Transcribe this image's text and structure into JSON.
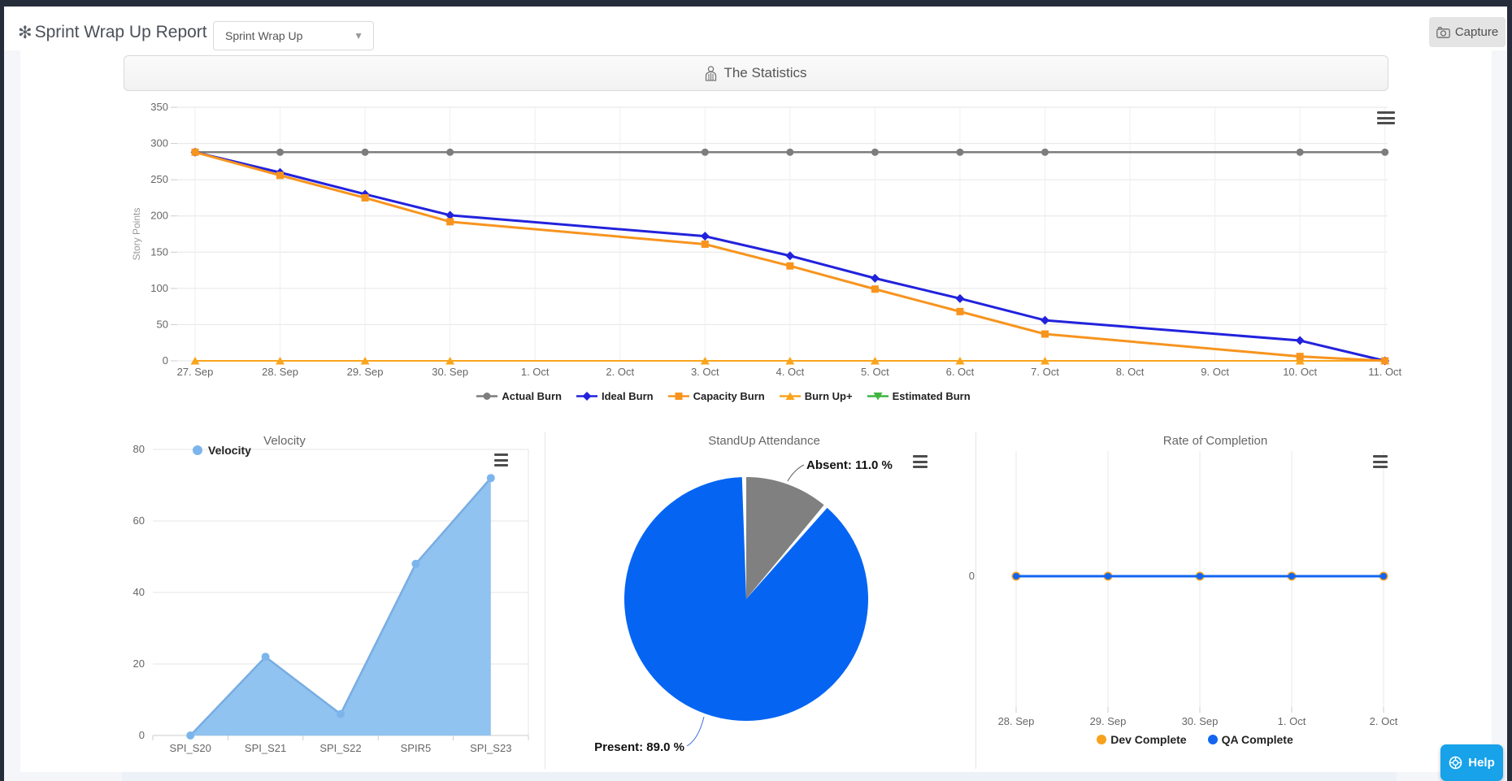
{
  "header": {
    "app_title": "Sprint Wrap Up Report",
    "app_icon": "flower-asterisk",
    "report_select": {
      "value": "Sprint Wrap Up"
    },
    "capture_label": "Capture"
  },
  "statistics_header": {
    "title": "The Statistics",
    "icon": "person-icon"
  },
  "help_button": {
    "label": "Help",
    "icon": "life-ring-icon"
  },
  "colors": {
    "frame": "#262d3a",
    "actual_burn": "#7d7d7d",
    "ideal_burn": "#2222dd",
    "capacity_burn": "#f7941e",
    "burn_up": "#f9a41c",
    "estimated_burn": "#3fb53f",
    "velocity_marker": "#7cb5ec",
    "velocity_line": "#78ade2",
    "velocity_fill": "#90c3ef",
    "pie_present": "#0565f2",
    "pie_absent": "#808080",
    "dev_complete": "#f7a11d",
    "qa_complete": "#1365f0",
    "help_blue": "#17a2e9"
  },
  "chart_data": [
    {
      "id": "burndown",
      "type": "line",
      "title": "",
      "ylabel": "Story Points",
      "ylim": [
        0,
        350
      ],
      "yticks": [
        0,
        50,
        100,
        150,
        200,
        250,
        300,
        350
      ],
      "categories": [
        "27. Sep",
        "28. Sep",
        "29. Sep",
        "30. Sep",
        "1. Oct",
        "2. Oct",
        "3. Oct",
        "4. Oct",
        "5. Oct",
        "6. Oct",
        "7. Oct",
        "8. Oct",
        "9. Oct",
        "10. Oct",
        "11. Oct"
      ],
      "point_category_indexes": [
        0,
        1,
        2,
        3,
        6,
        7,
        8,
        9,
        10,
        13,
        14
      ],
      "grid": true,
      "legend_position": "bottom-center",
      "series": [
        {
          "name": "Actual Burn",
          "color": "#7d7d7d",
          "marker": "circle",
          "values": [
            288,
            288,
            288,
            288,
            288,
            288,
            288,
            288,
            288,
            288,
            288
          ]
        },
        {
          "name": "Ideal Burn",
          "color": "#2222dd",
          "marker": "diamond",
          "values": [
            288,
            260,
            230,
            201,
            172,
            145,
            114,
            86,
            56,
            28,
            0
          ]
        },
        {
          "name": "Capacity Burn",
          "color": "#f7941e",
          "marker": "square",
          "values": [
            288,
            256,
            225,
            192,
            161,
            131,
            99,
            68,
            37,
            6,
            0
          ]
        },
        {
          "name": "Burn Up+",
          "color": "#f9a41c",
          "marker": "triangle",
          "values": [
            0,
            0,
            0,
            0,
            0,
            0,
            0,
            0,
            0,
            0,
            0
          ]
        },
        {
          "name": "Estimated Burn",
          "color": "#3fb53f",
          "marker": "triangle-down",
          "values": [
            0,
            0,
            0,
            0,
            0,
            0,
            0,
            0,
            0,
            0,
            0
          ]
        }
      ]
    },
    {
      "id": "velocity",
      "type": "area",
      "title": "Velocity",
      "legend": [
        {
          "name": "Velocity",
          "color": "#7cb5ec"
        }
      ],
      "categories": [
        "SPI_S20",
        "SPI_S21",
        "SPI_S22",
        "SPIR5",
        "SPI_S23"
      ],
      "values": [
        0,
        22,
        6,
        48,
        72
      ],
      "ylim": [
        0,
        80
      ],
      "yticks": [
        0,
        20,
        40,
        60,
        80
      ],
      "grid": true
    },
    {
      "id": "standup",
      "type": "pie",
      "title": "StandUp Attendance",
      "slices": [
        {
          "name": "Present",
          "value": 89.0,
          "label": "Present: 89.0 %",
          "color": "#0565f2"
        },
        {
          "name": "Absent",
          "value": 11.0,
          "label": "Absent: 11.0 %",
          "color": "#808080"
        }
      ]
    },
    {
      "id": "rate",
      "type": "line",
      "title": "Rate of Completion",
      "categories": [
        "28. Sep",
        "29. Sep",
        "30. Sep",
        "1. Oct",
        "2. Oct"
      ],
      "yticks": [
        0
      ],
      "grid": true,
      "legend_position": "bottom-center",
      "series": [
        {
          "name": "Dev Complete",
          "color": "#f7a11d",
          "values": [
            0,
            0,
            0,
            0,
            0
          ]
        },
        {
          "name": "QA Complete",
          "color": "#1365f0",
          "values": [
            0,
            0,
            0,
            0,
            0
          ]
        }
      ]
    }
  ]
}
